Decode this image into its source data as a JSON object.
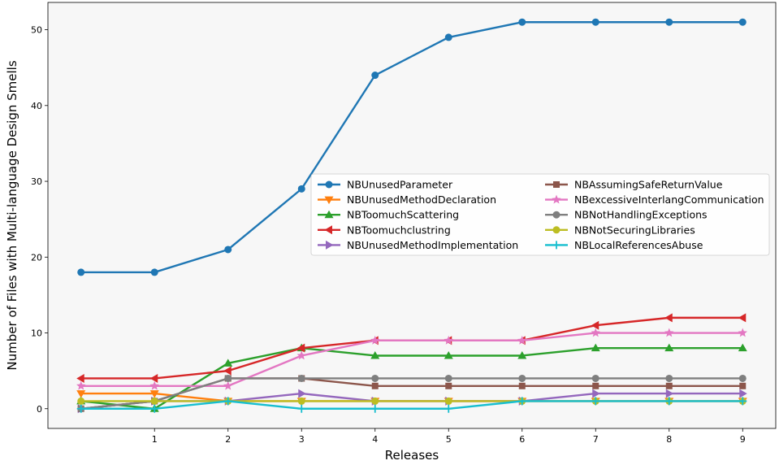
{
  "chart_data": {
    "type": "line",
    "xlabel": "Releases",
    "ylabel": "Number of Files with Multi-language Design Smells",
    "x": [
      0,
      1,
      2,
      3,
      4,
      5,
      6,
      7,
      8,
      9
    ],
    "xticks": [
      "1",
      "2",
      "3",
      "4",
      "5",
      "6",
      "7",
      "8",
      "9"
    ],
    "yticks": [
      "0",
      "10",
      "20",
      "30",
      "40",
      "50"
    ],
    "xlim": [
      -0.45,
      9.45
    ],
    "ylim": [
      -2.6,
      53.6
    ],
    "background": "#f7f7f7",
    "legend_placement": "center-right",
    "series": [
      {
        "name": "NBUnusedParameter",
        "color": "#1f77b4",
        "marker": "circle",
        "values": [
          18,
          18,
          21,
          29,
          44,
          49,
          51,
          51,
          51,
          51
        ]
      },
      {
        "name": "NBUnusedMethodDeclaration",
        "color": "#ff7f0e",
        "marker": "triangle-down",
        "values": [
          2,
          2,
          1,
          1,
          1,
          1,
          1,
          1,
          1,
          1
        ]
      },
      {
        "name": "NBToomuchScattering",
        "color": "#2ca02c",
        "marker": "triangle-up",
        "values": [
          1,
          0,
          6,
          8,
          7,
          7,
          7,
          8,
          8,
          8
        ]
      },
      {
        "name": "NBToomuchclustring",
        "color": "#d62728",
        "marker": "triangle-left",
        "values": [
          4,
          4,
          5,
          8,
          9,
          9,
          9,
          11,
          12,
          12
        ]
      },
      {
        "name": "NBUnusedMethodImplementation",
        "color": "#9467bd",
        "marker": "triangle-right",
        "values": [
          0,
          1,
          1,
          2,
          1,
          1,
          1,
          2,
          2,
          2
        ]
      },
      {
        "name": "NBAssumingSafeReturnValue",
        "color": "#8c564b",
        "marker": "square",
        "values": [
          0,
          1,
          4,
          4,
          3,
          3,
          3,
          3,
          3,
          3
        ]
      },
      {
        "name": "NBexcessiveInterlangCommunication",
        "color": "#e377c2",
        "marker": "star",
        "values": [
          3,
          3,
          3,
          7,
          9,
          9,
          9,
          10,
          10,
          10
        ]
      },
      {
        "name": "NBNotHandlingExceptions",
        "color": "#7f7f7f",
        "marker": "circle",
        "values": [
          0,
          1,
          4,
          4,
          4,
          4,
          4,
          4,
          4,
          4
        ]
      },
      {
        "name": "NBNotSecuringLibraries",
        "color": "#bcbd22",
        "marker": "circle",
        "values": [
          1,
          1,
          1,
          1,
          1,
          1,
          1,
          1,
          1,
          1
        ]
      },
      {
        "name": "NBLocalReferencesAbuse",
        "color": "#17becf",
        "marker": "plus",
        "values": [
          0,
          0,
          1,
          0,
          0,
          0,
          1,
          1,
          1,
          1
        ]
      }
    ]
  }
}
